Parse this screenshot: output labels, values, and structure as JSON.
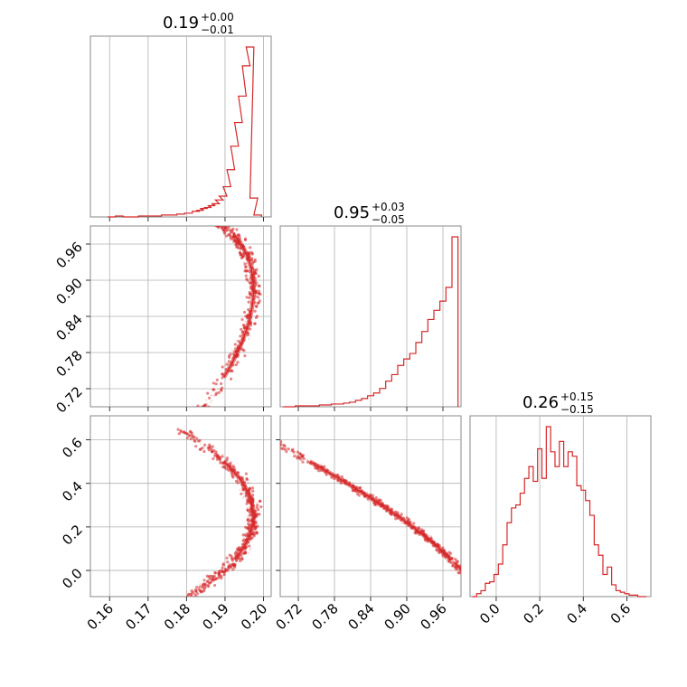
{
  "accent_color": "#d62728",
  "chart_data": {
    "type": "corner",
    "parameters": [
      {
        "range": [
          0.155,
          0.202
        ],
        "ticks": [
          0.16,
          0.17,
          0.18,
          0.19,
          0.2
        ],
        "tick_labels": [
          "0.16",
          "0.17",
          "0.18",
          "0.19",
          "0.20"
        ],
        "title_value": "0.19",
        "title_plus": "+0.00",
        "title_minus": "−0.01"
      },
      {
        "range": [
          0.69,
          0.99
        ],
        "ticks": [
          0.72,
          0.78,
          0.84,
          0.9,
          0.96
        ],
        "tick_labels": [
          "0.72",
          "0.78",
          "0.84",
          "0.90",
          "0.96"
        ],
        "title_value": "0.95",
        "title_plus": "+0.03",
        "title_minus": "−0.05"
      },
      {
        "range": [
          -0.12,
          0.71
        ],
        "ticks": [
          0.0,
          0.2,
          0.4,
          0.6
        ],
        "tick_labels": [
          "0.0",
          "0.2",
          "0.4",
          "0.6"
        ],
        "title_value": "0.26",
        "title_plus": "+0.15",
        "title_minus": "−0.15"
      }
    ],
    "histograms": [
      {
        "param": 0,
        "x": [
          0.1605,
          0.1625,
          0.1645,
          0.1665,
          0.1685,
          0.1705,
          0.1725,
          0.1745,
          0.1765,
          0.1785,
          0.1805,
          0.1825,
          0.1835,
          0.1845,
          0.1855,
          0.1865,
          0.1875,
          0.1885,
          0.1895,
          0.1905,
          0.1915,
          0.1925,
          0.1935,
          0.1945,
          0.1955,
          0.1965,
          0.1975,
          0.1985
        ],
        "counts": [
          0,
          1,
          0,
          0,
          1,
          1,
          1,
          2,
          2,
          3,
          4,
          6,
          7,
          9,
          10,
          12,
          14,
          18,
          22,
          32,
          50,
          75,
          100,
          128,
          160,
          180,
          20,
          2
        ]
      },
      {
        "param": 1,
        "x": [
          0.7,
          0.71,
          0.72,
          0.73,
          0.74,
          0.75,
          0.76,
          0.77,
          0.78,
          0.79,
          0.8,
          0.81,
          0.82,
          0.83,
          0.84,
          0.85,
          0.86,
          0.87,
          0.88,
          0.89,
          0.9,
          0.91,
          0.92,
          0.93,
          0.94,
          0.95,
          0.96,
          0.97,
          0.98
        ],
        "counts": [
          0,
          0,
          1,
          1,
          1,
          1,
          2,
          2,
          3,
          3,
          4,
          5,
          7,
          9,
          12,
          15,
          20,
          28,
          35,
          45,
          52,
          58,
          70,
          82,
          95,
          105,
          115,
          130,
          185
        ]
      },
      {
        "param": 2,
        "x": [
          -0.1,
          -0.08,
          -0.06,
          -0.04,
          -0.02,
          0.0,
          0.02,
          0.04,
          0.06,
          0.08,
          0.1,
          0.12,
          0.14,
          0.16,
          0.18,
          0.2,
          0.22,
          0.24,
          0.26,
          0.28,
          0.3,
          0.32,
          0.34,
          0.36,
          0.38,
          0.4,
          0.42,
          0.44,
          0.46,
          0.48,
          0.5,
          0.52,
          0.54,
          0.56,
          0.58,
          0.6,
          0.62,
          0.64,
          0.66,
          0.68
        ],
        "counts": [
          0,
          2,
          4,
          9,
          10,
          15,
          22,
          35,
          50,
          60,
          62,
          70,
          80,
          88,
          78,
          100,
          80,
          115,
          98,
          88,
          105,
          88,
          98,
          95,
          75,
          72,
          65,
          55,
          35,
          28,
          15,
          20,
          8,
          4,
          3,
          2,
          1,
          1,
          0,
          0
        ]
      }
    ],
    "scatter_pairs": [
      {
        "x_param": 0,
        "y_param": 1
      },
      {
        "x_param": 0,
        "y_param": 2
      },
      {
        "x_param": 1,
        "y_param": 2
      }
    ]
  }
}
